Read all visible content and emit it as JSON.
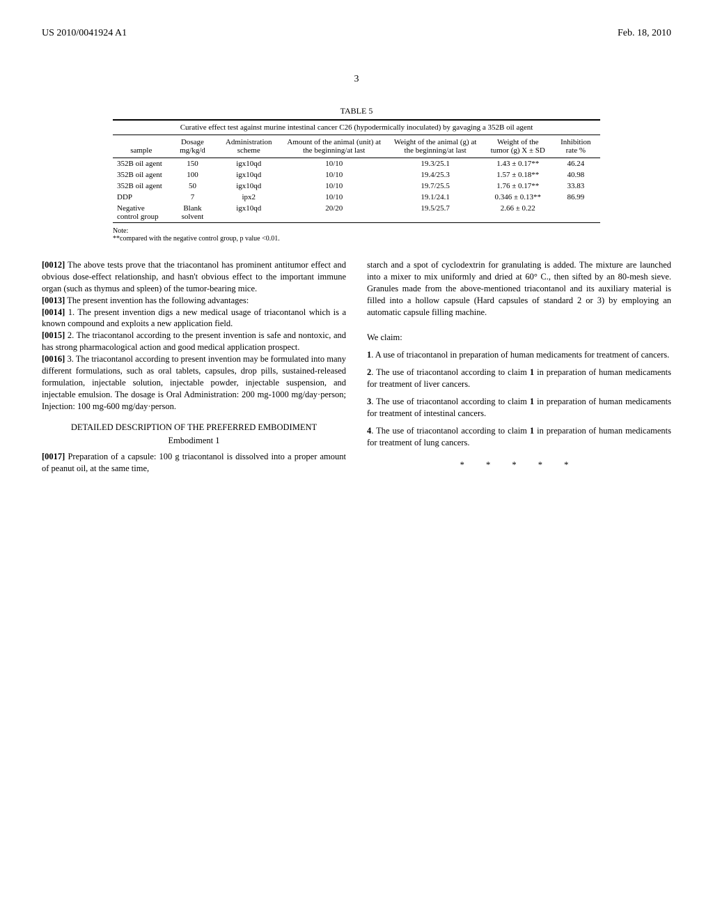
{
  "header": {
    "left": "US 2010/0041924 A1",
    "right": "Feb. 18, 2010"
  },
  "page_number": "3",
  "table5": {
    "label": "TABLE 5",
    "caption": "Curative effect test against murine intestinal cancer C26 (hypodermically inoculated) by gavaging a 352B oil agent",
    "columns": [
      "sample",
      "Dosage mg/kg/d",
      "Administration scheme",
      "Amount of the animal (unit) at the beginning/at last",
      "Weight of the animal (g) at the beginning/at last",
      "Weight of the tumor (g) X ± SD",
      "Inhibition rate %"
    ],
    "rows": [
      [
        "352B oil agent",
        "150",
        "igx10qd",
        "10/10",
        "19.3/25.1",
        "1.43 ± 0.17**",
        "46.24"
      ],
      [
        "352B oil agent",
        "100",
        "igx10qd",
        "10/10",
        "19.4/25.3",
        "1.57 ± 0.18**",
        "40.98"
      ],
      [
        "352B oil agent",
        "50",
        "igx10qd",
        "10/10",
        "19.7/25.5",
        "1.76 ± 0.17**",
        "33.83"
      ],
      [
        "DDP",
        "7",
        "ipx2",
        "10/10",
        "19.1/24.1",
        "0.346 ± 0.13**",
        "86.99"
      ],
      [
        "Negative control group",
        "Blank solvent",
        "igx10qd",
        "20/20",
        "19.5/25.7",
        "2.66 ± 0.22",
        ""
      ]
    ],
    "note_label": "Note:",
    "note_text": "**compared with the negative control group, p value <0.01."
  },
  "paras": {
    "p0012": "[0012]   The above tests prove that the triacontanol has prominent antitumor effect and obvious dose-effect relationship, and hasn't obvious effect to the important immune organ (such as thymus and spleen) of the tumor-bearing mice.",
    "p0013": "[0013]   The present invention has the following advantages:",
    "p0014": "[0014]   1. The present invention digs a new medical usage of triacontanol which is a known compound and exploits a new application field.",
    "p0015": "[0015]   2. The triacontanol according to the present invention is safe and nontoxic, and has strong pharmacological action and good medical application prospect.",
    "p0016": "[0016]   3. The triacontanol according to present invention may be formulated into many different formulations, such as oral tablets, capsules, drop pills, sustained-released formulation, injectable solution, injectable powder, injectable suspension, and injectable emulsion. The dosage is Oral Administration: 200 mg-1000 mg/day·person; Injection: 100 mg-600 mg/day·person.",
    "section_head": "DETAILED DESCRIPTION OF THE PREFERRED EMBODIMENT",
    "sub_head": "Embodiment 1",
    "p0017": "[0017]   Preparation of a capsule: 100 g triacontanol is dissolved into a proper amount of peanut oil, at the same time,",
    "col2_cont": "starch and a spot of cyclodextrin for granulating is added. The mixture are launched into a mixer to mix uniformly and dried at 60° C., then sifted by an 80-mesh sieve. Granules made from the above-mentioned triacontanol and its auxiliary material is filled into a hollow capsule (Hard capsules of standard 2 or 3) by employing an automatic capsule filling machine.",
    "we_claim": "We claim:",
    "c1": "1. A use of triacontanol in preparation of human medicaments for treatment of cancers.",
    "c2": "2. The use of triacontanol according to claim 1 in preparation of human medicaments for treatment of liver cancers.",
    "c3": "3. The use of triacontanol according to claim 1 in preparation of human medicaments for treatment of intestinal cancers.",
    "c4": "4. The use of triacontanol according to claim 1 in preparation of human medicaments for treatment of lung cancers.",
    "stars": "*   *   *   *   *"
  }
}
